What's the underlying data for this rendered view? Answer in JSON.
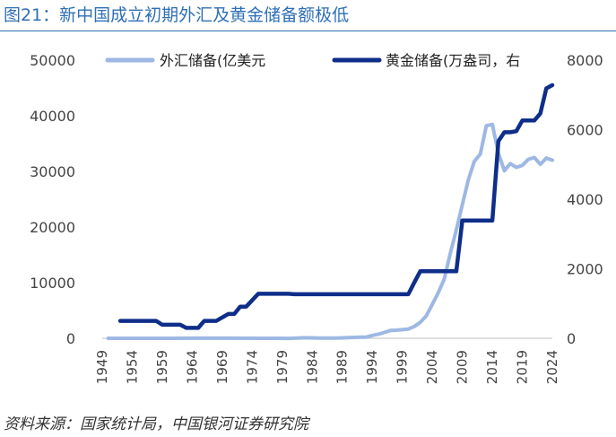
{
  "title": "图21：新中国成立初期外汇及黄金储备额极低",
  "source": "资料来源：国家统计局，中国银河证券研究院",
  "chart_data": {
    "type": "line",
    "y_left": {
      "min": 0,
      "max": 50000,
      "ticks": [
        0,
        10000,
        20000,
        30000,
        40000,
        50000
      ],
      "tick_labels": [
        "0",
        "10000",
        "20000",
        "30000",
        "40000",
        "50000"
      ]
    },
    "y_right": {
      "min": 0,
      "max": 8000,
      "ticks": [
        0,
        2000,
        4000,
        6000,
        8000
      ],
      "tick_labels": [
        "0",
        "2000",
        "4000",
        "6000",
        "8000"
      ]
    },
    "x_range": [
      1949,
      2024
    ],
    "x_ticks": [
      1949,
      1954,
      1959,
      1964,
      1969,
      1974,
      1979,
      1984,
      1989,
      1994,
      1999,
      2004,
      2009,
      2014,
      2019,
      2024
    ],
    "x_tick_labels": [
      "1949",
      "1954",
      "1959",
      "1964",
      "1969",
      "1974",
      "1979",
      "1984",
      "1989",
      "1994",
      "1999",
      "2004",
      "2009",
      "2014",
      "2019",
      "2024"
    ],
    "legend_placement": "top",
    "series": [
      {
        "name": "外汇储备(亿美元",
        "axis": "left",
        "color": "#9db8e3",
        "x": [
          1950,
          1955,
          1960,
          1965,
          1970,
          1975,
          1978,
          1980,
          1983,
          1985,
          1988,
          1990,
          1992,
          1993,
          1994,
          1995,
          1996,
          1997,
          1998,
          1999,
          2000,
          2001,
          2002,
          2003,
          2004,
          2005,
          2006,
          2007,
          2008,
          2009,
          2010,
          2011,
          2012,
          2013,
          2014,
          2015,
          2016,
          2017,
          2018,
          2019,
          2020,
          2021,
          2022,
          2023,
          2024
        ],
        "values": [
          1,
          2,
          5,
          10,
          9,
          2,
          2,
          -13,
          89,
          26,
          34,
          111,
          194,
          212,
          516,
          736,
          1050,
          1399,
          1450,
          1547,
          1656,
          2122,
          2864,
          4033,
          6099,
          8189,
          10663,
          15282,
          19460,
          23992,
          28473,
          31811,
          33116,
          38213,
          38430,
          33304,
          30105,
          31399,
          30727,
          31079,
          32165,
          32502,
          31277,
          32380,
          32024
        ]
      },
      {
        "name": "黄金储备(万盎司，右",
        "axis": "right",
        "color": "#0f2e8a",
        "x": [
          1952,
          1953,
          1957,
          1958,
          1959,
          1960,
          1962,
          1963,
          1965,
          1966,
          1967,
          1968,
          1970,
          1971,
          1972,
          1973,
          1975,
          1976,
          1980,
          1981,
          1985,
          1990,
          1995,
          1999,
          2000,
          2001,
          2002,
          2003,
          2004,
          2005,
          2007,
          2008,
          2009,
          2010,
          2014,
          2015,
          2016,
          2017,
          2018,
          2019,
          2020,
          2021,
          2022,
          2023,
          2024
        ],
        "values": [
          500,
          500,
          500,
          500,
          390,
          390,
          390,
          300,
          300,
          500,
          500,
          500,
          700,
          700,
          910,
          910,
          1280,
          1280,
          1280,
          1267,
          1267,
          1267,
          1267,
          1267,
          1267,
          1608,
          1929,
          1929,
          1929,
          1929,
          1929,
          1929,
          3389,
          3389,
          3389,
          5666,
          5924,
          5924,
          5956,
          6264,
          6264,
          6264,
          6464,
          7187,
          7280
        ]
      }
    ]
  }
}
